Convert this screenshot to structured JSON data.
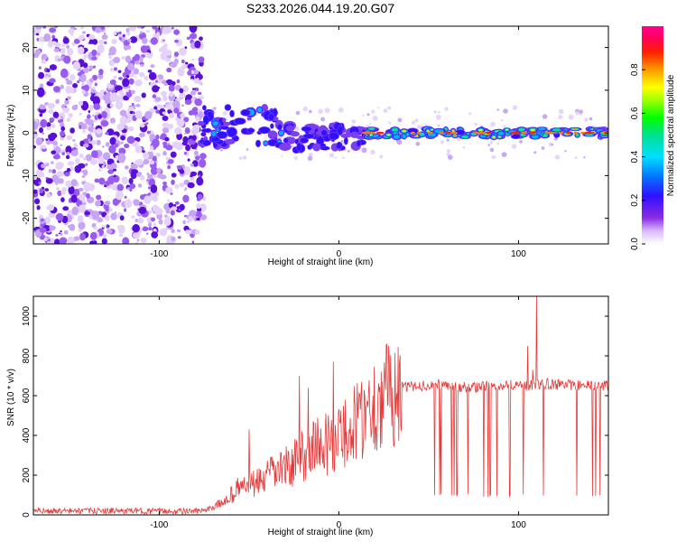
{
  "title": "S233.2026.044.19.20.G07",
  "colors": {
    "snr_line": "#e53a3a",
    "speckle_dark": "#5a10d8",
    "speckle_light": "#e4d2fa"
  },
  "chart_data": [
    {
      "type": "heatmap",
      "name": "spectrogram",
      "title": "S233.2026.044.19.20.G07",
      "xlabel": "Height of straight line (km)",
      "ylabel": "Frequency (Hz)",
      "xlim": [
        -170,
        150
      ],
      "ylim": [
        -26,
        25
      ],
      "xticks": [
        -100,
        0,
        100
      ],
      "yticks": [
        -20,
        -10,
        0,
        10,
        20
      ],
      "noise_region_x": [
        -170,
        -75
      ],
      "signal_band_hz": 0,
      "colorbar": {
        "label": "Normalized spectral amplitude",
        "range": [
          0.0,
          1.0
        ],
        "ticks": [
          0.0,
          0.2,
          0.4,
          0.6,
          0.8
        ],
        "tick_labels": [
          "0.0",
          "0.2",
          "0.4",
          "0.6",
          "0.8"
        ],
        "colormap": "rainbow (white-violet-blue-cyan-green-yellow-orange-red-magenta)"
      },
      "features": [
        {
          "x_range": [
            -77,
            -32
          ],
          "freq_range": [
            -3,
            6
          ],
          "amplitude": 0.35
        },
        {
          "x_range": [
            -30,
            15
          ],
          "freq_range": [
            -4,
            2
          ],
          "amplitude": 0.3
        },
        {
          "x_range": [
            15,
            150
          ],
          "freq_range": [
            -1,
            1
          ],
          "amplitude": 0.75
        }
      ]
    },
    {
      "type": "line",
      "name": "snr",
      "xlabel": "Height of straight line (km)",
      "ylabel": "SNR (10 * v/v)",
      "xlim": [
        -170,
        150
      ],
      "ylim": [
        0,
        1100
      ],
      "xticks": [
        -100,
        0,
        100
      ],
      "yticks": [
        0,
        200,
        400,
        600,
        800,
        1000
      ],
      "series": [
        {
          "name": "SNR",
          "x": [
            -170,
            -140,
            -110,
            -90,
            -75,
            -65,
            -55,
            -45,
            -35,
            -25,
            -15,
            -5,
            5,
            15,
            25,
            35,
            45,
            55,
            65,
            75,
            85,
            95,
            105,
            115,
            125,
            135,
            150
          ],
          "values": [
            20,
            20,
            20,
            18,
            20,
            60,
            140,
            160,
            220,
            260,
            340,
            360,
            420,
            520,
            600,
            640,
            650,
            655,
            645,
            640,
            650,
            655,
            650,
            660,
            655,
            650,
            650
          ],
          "peaks": [
            {
              "x": -50,
              "value": 430
            },
            {
              "x": -22,
              "value": 700
            },
            {
              "x": -17,
              "value": 640
            },
            {
              "x": -3,
              "value": 770
            },
            {
              "x": 105,
              "value": 850
            },
            {
              "x": 108,
              "value": 730
            },
            {
              "x": 110,
              "value": 1100
            }
          ],
          "dropout_level": 90,
          "dropout_x_range": [
            52,
            150
          ]
        }
      ]
    }
  ]
}
